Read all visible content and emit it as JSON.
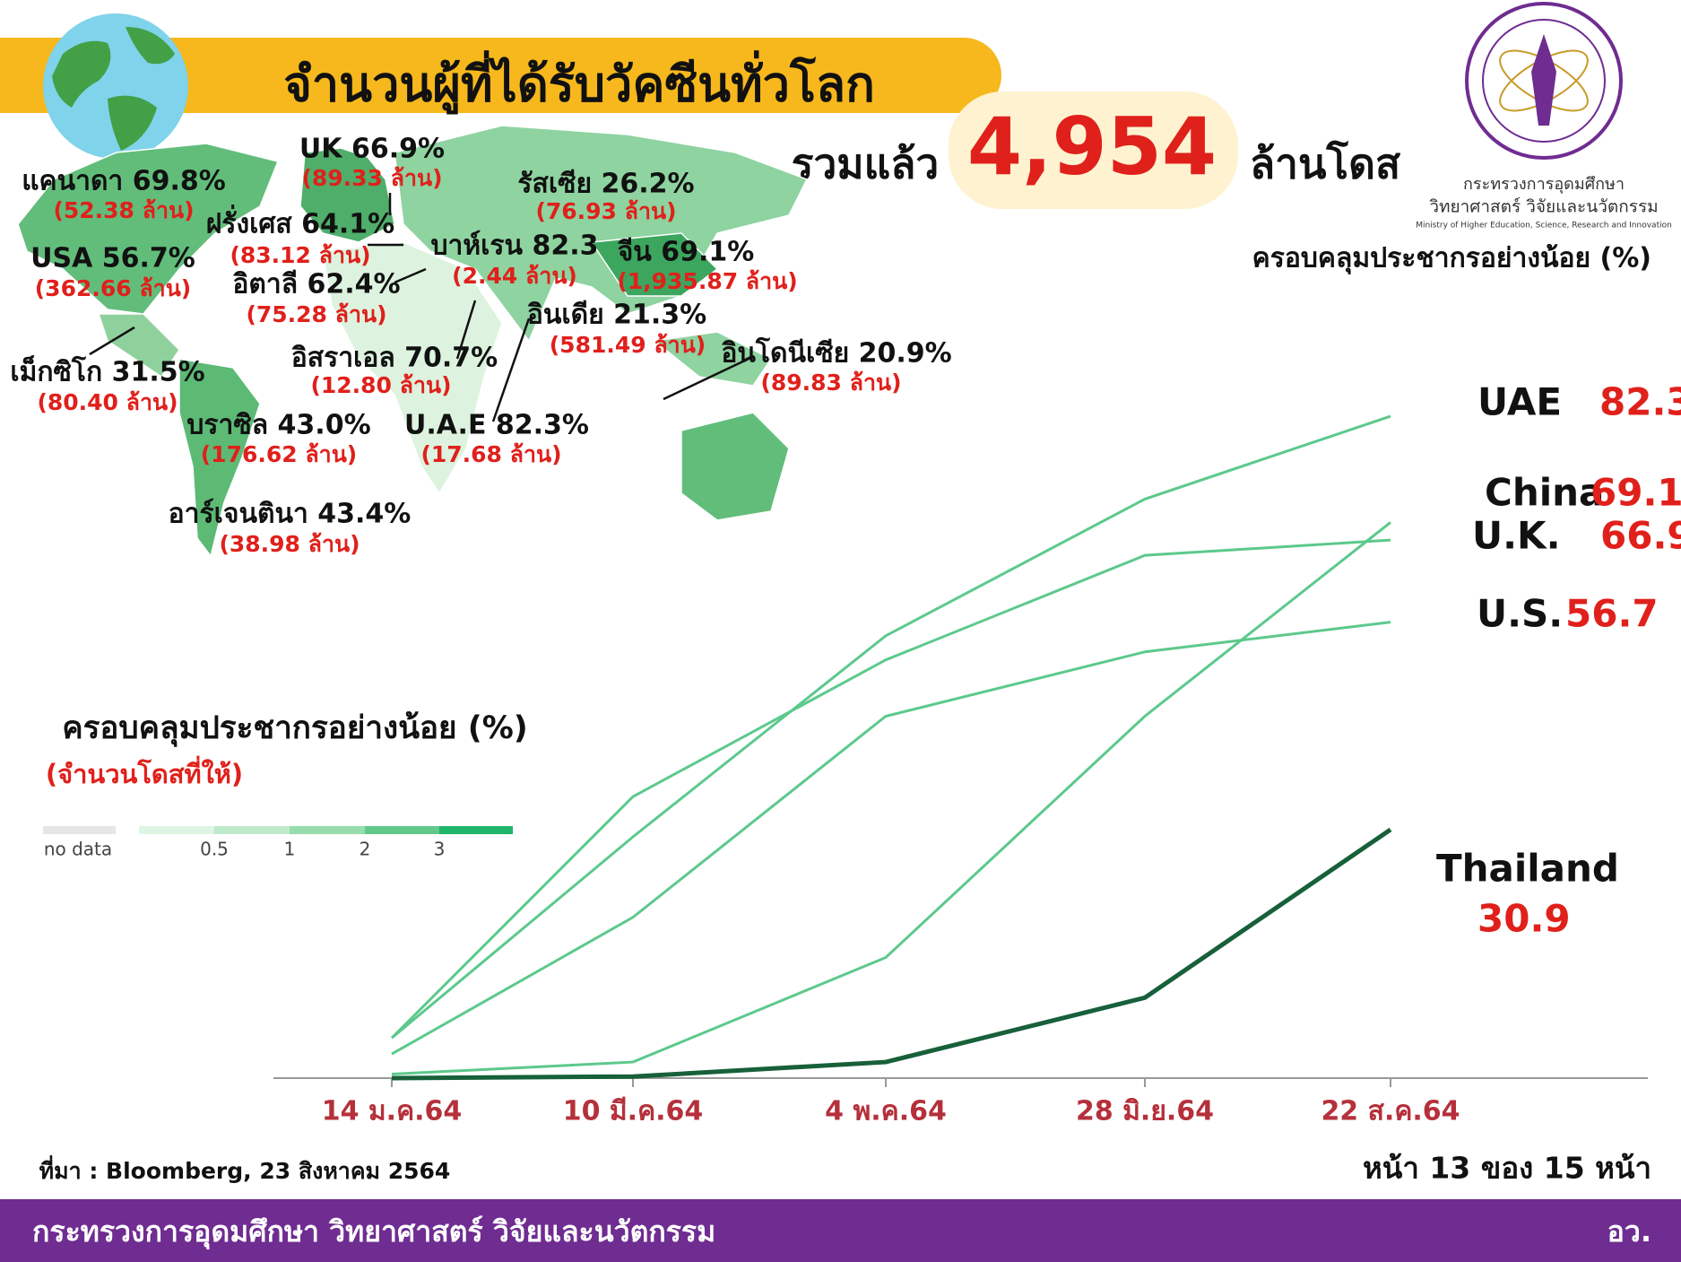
{
  "header": {
    "title": "จำนวนผู้ที่ได้รับวัคซีนทั่วโลก",
    "total_prefix": "รวมแล้ว",
    "total_value": "4,954",
    "total_unit": "ล้านโดส"
  },
  "logo": {
    "line1": "กระทรวงการอุดมศึกษา",
    "line2": "วิทยาศาสตร์ วิจัยและนวัตกรรม",
    "line3": "Ministry of Higher Education, Science, Research and Innovation"
  },
  "map": {
    "labels": [
      {
        "name": "แคนาดา 69.8%",
        "doses": "(52.38 ล้าน)"
      },
      {
        "name": "UK 66.9%",
        "doses": "(89.33 ล้าน)"
      },
      {
        "name": "รัสเซีย 26.2%",
        "doses": "(76.93 ล้าน)"
      },
      {
        "name": "ฝรั่งเศส 64.1%",
        "doses": "(83.12 ล้าน)"
      },
      {
        "name": "USA 56.7%",
        "doses": "(362.66 ล้าน)"
      },
      {
        "name": "บาห์เรน 82.3",
        "doses": "(2.44 ล้าน)"
      },
      {
        "name": "จีน 69.1%",
        "doses": "(1,935.87 ล้าน)"
      },
      {
        "name": "อิตาลี 62.4%",
        "doses": "(75.28 ล้าน)"
      },
      {
        "name": "อินเดีย 21.3%",
        "doses": "(581.49 ล้าน)"
      },
      {
        "name": "อิสราเอล 70.7%",
        "doses": "(12.80 ล้าน)"
      },
      {
        "name": "อินโดนีเซีย 20.9%",
        "doses": "(89.83 ล้าน)"
      },
      {
        "name": "เม็กซิโก 31.5%",
        "doses": "(80.40 ล้าน)"
      },
      {
        "name": "บราซิล 43.0%",
        "doses": "(176.62 ล้าน)"
      },
      {
        "name": "U.A.E 82.3%",
        "doses": "(17.68 ล้าน)"
      },
      {
        "name": "อาร์เจนตินา 43.4%",
        "doses": "(38.98 ล้าน)"
      }
    ],
    "legend": {
      "title": "ครอบคลุมประชากรอย่างน้อย (%)",
      "subtitle": "(จำนวนโดสที่ให้)",
      "no_data": "no data",
      "ticks": [
        "0.5",
        "1",
        "2",
        "3"
      ]
    }
  },
  "chart_data": {
    "type": "line",
    "title": "ครอบคลุมประชากรอย่างน้อย (%)",
    "categories": [
      "14 ม.ค.64",
      "10 มี.ค.64",
      "4 พ.ค.64",
      "28 มิ.ย.64",
      "22 ส.ค.64"
    ],
    "ylim": [
      0,
      90
    ],
    "series": [
      {
        "name": "UAE",
        "color": "#5cc98c",
        "values": [
          5,
          30,
          55,
          72,
          82.3
        ]
      },
      {
        "name": "China",
        "color": "#5cc98c",
        "values": [
          0.5,
          2,
          15,
          45,
          69.1
        ]
      },
      {
        "name": "U.K.",
        "color": "#5cc98c",
        "values": [
          5,
          35,
          52,
          65,
          66.9
        ]
      },
      {
        "name": "U.S.",
        "color": "#5cc98c",
        "values": [
          3,
          20,
          45,
          53,
          56.7
        ]
      },
      {
        "name": "Thailand",
        "color": "#17603a",
        "values": [
          0,
          0.2,
          2,
          10,
          30.9
        ]
      }
    ]
  },
  "footer": {
    "source": "ที่มา : Bloomberg, 23 สิงหาคม 2564",
    "page": "หน้า 13 ของ 15 หน้า",
    "ministry": "กระทรวงการอุดมศึกษา วิทยาศาสตร์ วิจัยและนวัตกรรม",
    "abbr": "อว."
  }
}
